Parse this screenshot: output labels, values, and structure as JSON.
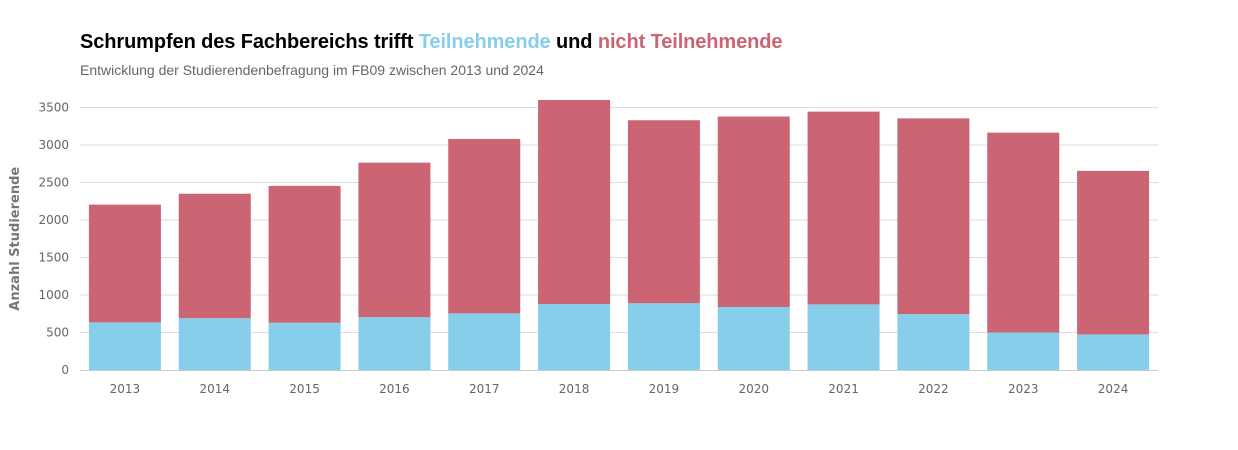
{
  "header": {
    "title_part1": "Schrumpfen des Fachbereichs trifft ",
    "title_part2": "Teilnehmende",
    "title_part3": " und ",
    "title_part4": "nicht Teilnehmende",
    "subtitle": "Entwicklung der Studierendenbefragung im FB09 zwischen 2013 und 2024"
  },
  "colors": {
    "teilnehmende": "#87ceeb",
    "nicht_teilnehmende": "#cb6473",
    "grid": "#dddddd",
    "axis": "#cccccc"
  },
  "chart_data": {
    "type": "bar",
    "stacked": true,
    "categories": [
      "2013",
      "2014",
      "2015",
      "2016",
      "2017",
      "2018",
      "2019",
      "2020",
      "2021",
      "2022",
      "2023",
      "2024"
    ],
    "series": [
      {
        "name": "Teilnehmende",
        "values": [
          635,
          690,
          630,
          705,
          755,
          880,
          890,
          840,
          875,
          745,
          500,
          475
        ]
      },
      {
        "name": "nicht Teilnehmende",
        "values": [
          1570,
          1660,
          1825,
          2060,
          2325,
          2720,
          2440,
          2540,
          2570,
          2610,
          2665,
          2180
        ]
      }
    ],
    "ylabel": "Anzahl Studierende",
    "xlabel": "",
    "ylim": [
      0,
      3600
    ],
    "yticks": [
      0,
      500,
      1000,
      1500,
      2000,
      2500,
      3000,
      3500
    ],
    "grid": true,
    "legend": "none"
  }
}
